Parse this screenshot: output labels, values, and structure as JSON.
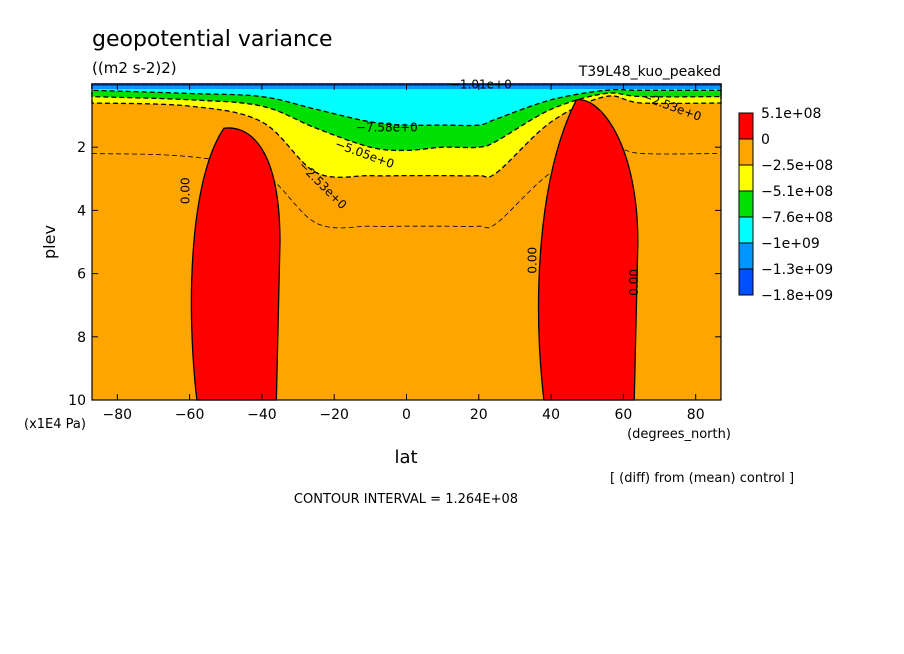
{
  "chart_data": {
    "type": "heatmap",
    "title": "geopotential variance",
    "subtitle": "((m2 s-2)2)",
    "run_label": "T39L48_kuo_peaked",
    "xlabel": "lat",
    "x_units": "(degrees_north)",
    "ylabel": "plev",
    "y_units": "(x1E4 Pa)",
    "xlim": [
      -87,
      87
    ],
    "ylim": [
      10,
      0
    ],
    "x_ticks": [
      -80,
      -60,
      -40,
      -20,
      0,
      20,
      40,
      60,
      80
    ],
    "x_tick_labels": [
      "−80",
      "−60",
      "−40",
      "−20",
      "0",
      "20",
      "40",
      "60",
      "80"
    ],
    "y_ticks": [
      2,
      4,
      6,
      8,
      10
    ],
    "y_tick_labels": [
      "2",
      "4",
      "6",
      "8",
      "10"
    ],
    "colorbar": {
      "colors": [
        "#ff0000",
        "#ffa500",
        "#ffff00",
        "#00e000",
        "#00ffff",
        "#0096ff",
        "#0050ff"
      ],
      "labels": [
        "5.1e+08",
        "0",
        "−2.5e+08",
        "−5.1e+08",
        "−7.6e+08",
        "−1e+09",
        "−1.3e+09",
        "−1.8e+09"
      ]
    },
    "contour_labels": [
      "0.00",
      "0.00",
      "0.00",
      "−7.58e+0",
      "−5.05e+0",
      "−2.53e+0",
      "−1.01e+0",
      "−2.53e+0"
    ],
    "note": "[ (diff) from (mean) control ]",
    "contour_interval_text": "CONTOUR INTERVAL = 1.264E+08",
    "regions": {
      "positive_cells": [
        {
          "lat_range": [
            -60,
            -35
          ],
          "plev_top": 1.4,
          "label": "0.00"
        },
        {
          "lat_range": [
            36,
            64
          ],
          "plev_top": 0.5,
          "label": "0.00"
        }
      ],
      "negative_layer_depth_plev": {
        "lat": [
          -87,
          -60,
          -40,
          -25,
          -10,
          0,
          10,
          20,
          25,
          40,
          55,
          65,
          87
        ],
        "minus_2_5e8": [
          0.6,
          0.7,
          1.2,
          2.8,
          2.9,
          2.9,
          2.9,
          2.9,
          2.8,
          1.2,
          0.4,
          0.6,
          0.6
        ],
        "minus_5_1e8": [
          0.4,
          0.5,
          0.7,
          1.4,
          2.0,
          2.1,
          2.0,
          2.0,
          1.8,
          0.8,
          0.3,
          0.4,
          0.4
        ],
        "minus_7_6e8": [
          0.2,
          0.3,
          0.4,
          0.8,
          1.2,
          1.3,
          1.3,
          1.3,
          1.1,
          0.5,
          0.2,
          0.2,
          0.2
        ]
      }
    }
  }
}
